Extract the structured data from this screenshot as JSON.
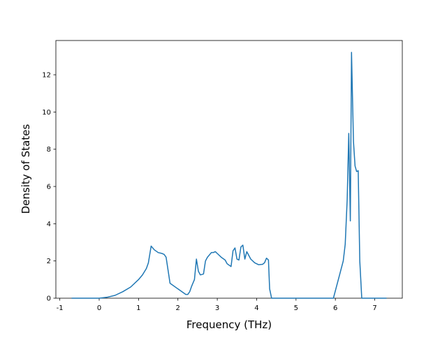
{
  "chart_data": {
    "type": "line",
    "xlabel": "Frequency (THz)",
    "ylabel": "Density of States",
    "x": [
      -0.7,
      -0.3,
      0,
      0.2,
      0.4,
      0.6,
      0.8,
      1.0,
      1.1,
      1.2,
      1.25,
      1.32,
      1.4,
      1.5,
      1.6,
      1.65,
      1.7,
      1.75,
      1.8,
      2.0,
      2.1,
      2.2,
      2.25,
      2.3,
      2.35,
      2.42,
      2.47,
      2.52,
      2.57,
      2.65,
      2.7,
      2.75,
      2.85,
      2.9,
      2.95,
      3.0,
      3.1,
      3.2,
      3.25,
      3.35,
      3.4,
      3.45,
      3.5,
      3.55,
      3.6,
      3.65,
      3.7,
      3.75,
      3.85,
      3.95,
      4.05,
      4.15,
      4.2,
      4.25,
      4.3,
      4.33,
      4.38,
      5.95,
      6.0,
      6.1,
      6.2,
      6.25,
      6.3,
      6.34,
      6.38,
      6.41,
      6.46,
      6.5,
      6.54,
      6.58,
      6.62,
      6.67,
      7.3
    ],
    "values": [
      0,
      0,
      0,
      0.05,
      0.15,
      0.35,
      0.6,
      1.0,
      1.25,
      1.6,
      1.9,
      2.8,
      2.6,
      2.45,
      2.4,
      2.35,
      2.2,
      1.5,
      0.8,
      0.5,
      0.35,
      0.2,
      0.2,
      0.35,
      0.65,
      1.0,
      2.1,
      1.45,
      1.25,
      1.3,
      2.0,
      2.2,
      2.45,
      2.45,
      2.5,
      2.4,
      2.2,
      2.05,
      1.85,
      1.7,
      2.55,
      2.7,
      2.1,
      2.05,
      2.75,
      2.85,
      2.1,
      2.5,
      2.1,
      1.9,
      1.8,
      1.82,
      1.9,
      2.15,
      2.05,
      0.5,
      0,
      0,
      0.4,
      1.2,
      2.0,
      2.9,
      5.3,
      8.85,
      4.15,
      13.2,
      8.4,
      7.1,
      6.8,
      6.85,
      2.0,
      0,
      0
    ],
    "color": "#1f77b4",
    "xlim": [
      -1.1,
      7.7
    ],
    "xticks": [
      -1,
      0,
      1,
      2,
      3,
      4,
      5,
      6,
      7
    ],
    "ylim": [
      0,
      13.84
    ],
    "yticks": [
      0,
      2,
      4,
      6,
      8,
      10,
      12
    ]
  }
}
